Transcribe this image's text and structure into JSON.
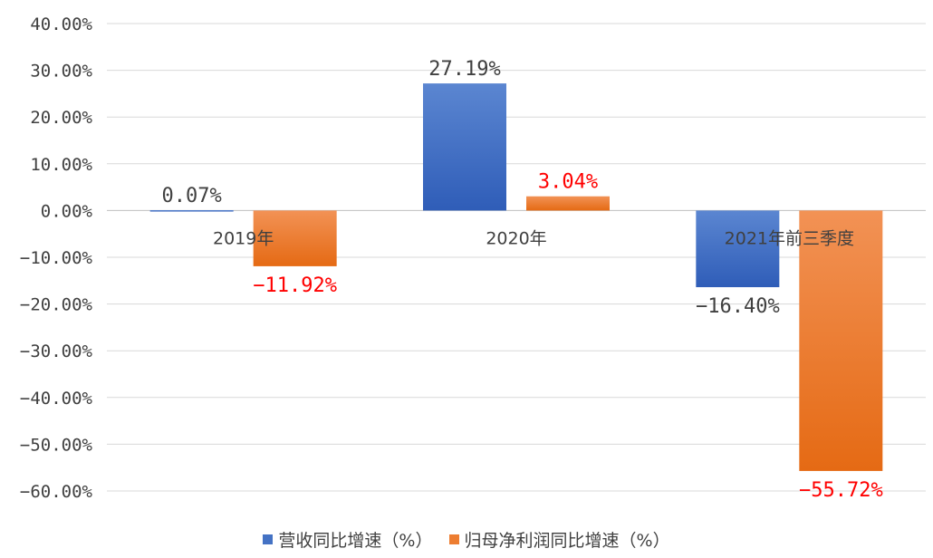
{
  "chart_data": {
    "type": "bar",
    "categories": [
      "2019年",
      "2020年",
      "2021年前三季度"
    ],
    "series": [
      {
        "name": "营收同比增速（%）",
        "values": [
          0.07,
          27.19,
          -16.4
        ],
        "color": "#4472C4",
        "labels": [
          "0.07%",
          "27.19%",
          "−16.40%"
        ],
        "label_color": "#404040"
      },
      {
        "name": "归母净利润同比增速（%）",
        "values": [
          -11.92,
          3.04,
          -55.72
        ],
        "color": "#ED7D31",
        "labels": [
          "−11.92%",
          "3.04%",
          "−55.72%"
        ],
        "label_color": "#FF0000"
      }
    ],
    "ylim": [
      -60,
      40
    ],
    "y_ticks": [
      40,
      30,
      20,
      10,
      0,
      -10,
      -20,
      -30,
      -40,
      -50,
      -60
    ],
    "y_tick_labels": [
      "40.00%",
      "30.00%",
      "20.00%",
      "10.00%",
      "0.00%",
      "−10.00%",
      "−20.00%",
      "−30.00%",
      "−40.00%",
      "−50.00%",
      "−60.00%"
    ],
    "grid": true,
    "legend_position": "bottom",
    "title": "",
    "xlabel": "",
    "ylabel": ""
  }
}
